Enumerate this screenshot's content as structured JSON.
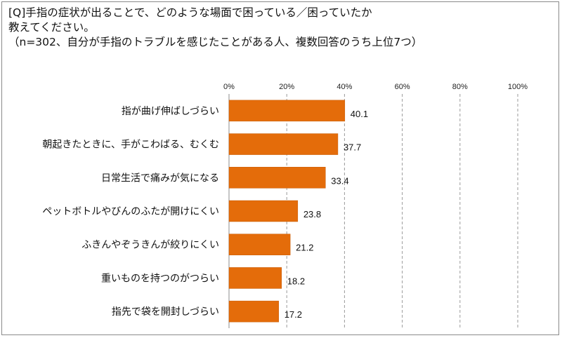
{
  "question": {
    "line1": "[Q]手指の症状が出ることで、どのような場面で困っている／困っていたか",
    "line2": "教えてください。",
    "line3": "（n=302、自分が手指のトラブルを感じたことがある人、複数回答のうち上位7つ）"
  },
  "chart_data": {
    "type": "bar",
    "orientation": "horizontal",
    "title": "",
    "xlabel": "",
    "ylabel": "",
    "xlim": [
      0,
      100
    ],
    "ticks": [
      "0%",
      "20%",
      "40%",
      "60%",
      "80%",
      "100%"
    ],
    "tick_values": [
      0,
      20,
      40,
      60,
      80,
      100
    ],
    "grid": "vertical dashed",
    "bar_color": "#E46C0A",
    "categories": [
      "指が曲げ伸ばしづらい",
      "朝起きたときに、手がこわばる、むくむ",
      "日常生活で痛みが気になる",
      "ペットボトルやびんのふたが開けにくい",
      "ふきんやぞうきんが絞りにくい",
      "重いものを持つのがつらい",
      "指先で袋を開封しづらい"
    ],
    "values": [
      40.1,
      37.7,
      33.4,
      23.8,
      21.2,
      18.2,
      17.2
    ],
    "value_labels": [
      "40.1",
      "37.7",
      "33.4",
      "23.8",
      "21.2",
      "18.2",
      "17.2"
    ]
  }
}
